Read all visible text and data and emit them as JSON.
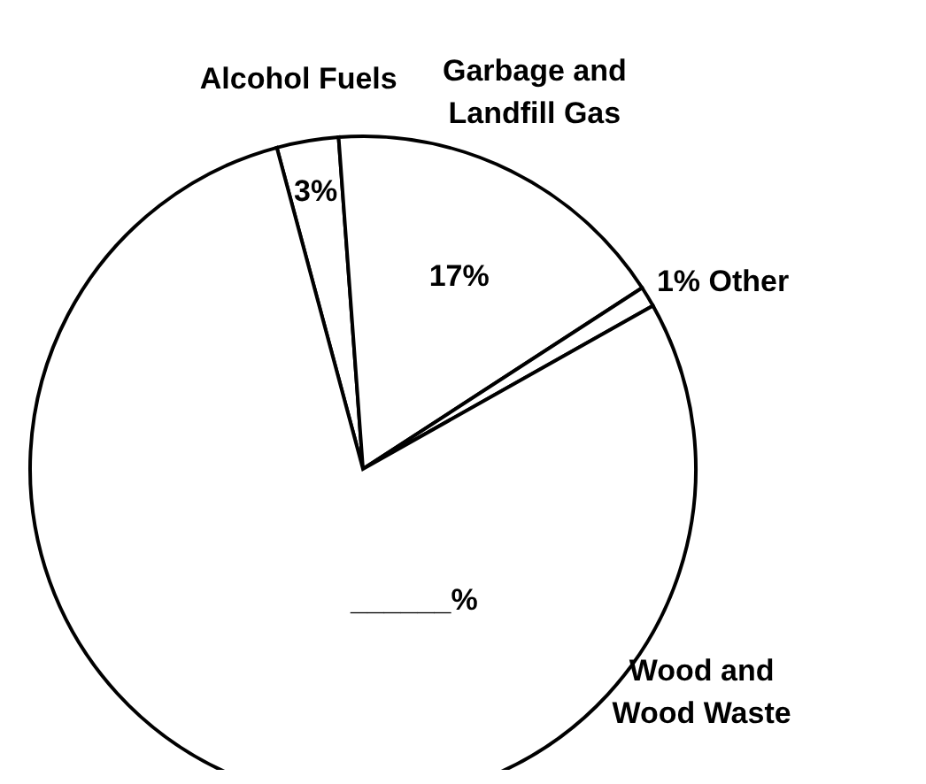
{
  "chart_data": {
    "type": "pie",
    "categories": [
      "Alcohol Fuels",
      "Garbage and Landfill Gas",
      "Other",
      "Wood and Wood Waste"
    ],
    "values": [
      3,
      17,
      1,
      79
    ],
    "value_labels": [
      "3%",
      "17%",
      "1%",
      "______%"
    ],
    "colors": [
      "#ffffff",
      "#ffffff",
      "#ffffff",
      "#ffffff"
    ],
    "legend": false
  }
}
